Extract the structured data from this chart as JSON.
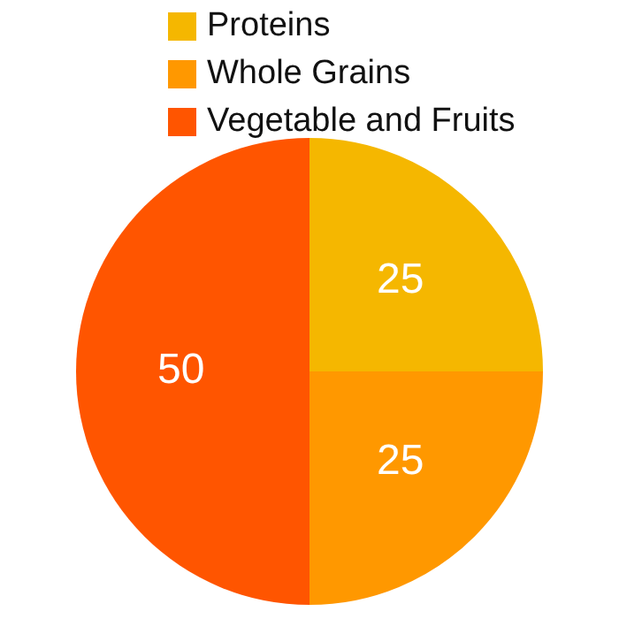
{
  "chart_data": {
    "type": "pie",
    "categories": [
      "Proteins",
      "Whole Grains",
      "Vegetable and Fruits"
    ],
    "values": [
      25,
      25,
      50
    ],
    "colors": [
      "#f5b700",
      "#ff9800",
      "#ff5500"
    ],
    "legend": "top",
    "data_labels": true
  }
}
